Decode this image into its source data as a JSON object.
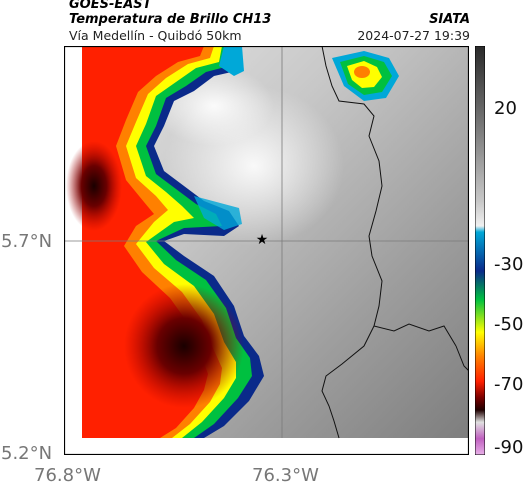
{
  "header": {
    "product": "GOES-EAST",
    "title": "Temperatura de Brillo CH13",
    "brand": "SIATA",
    "subtitle": "Vía Medellín - Quibdó 50km",
    "timestamp": "2024-07-27 19:39"
  },
  "axes": {
    "lat_labels": [
      "5.7°N",
      "5.2°N"
    ],
    "lon_labels": [
      "76.8°W",
      "76.3°W"
    ]
  },
  "colorbar": {
    "labels": [
      "20",
      "-30",
      "-50",
      "-70",
      "-90"
    ],
    "palette": [
      "#2a2a2a",
      "#7a7a7a",
      "#c8c8c8",
      "#f0f0f0",
      "#00a8d8",
      "#0a2a8a",
      "#00c040",
      "#ffff00",
      "#ff8000",
      "#ff2000",
      "#7a0000",
      "#200000",
      "#c060c0"
    ]
  },
  "map": {
    "marker_icon": "star-icon"
  }
}
